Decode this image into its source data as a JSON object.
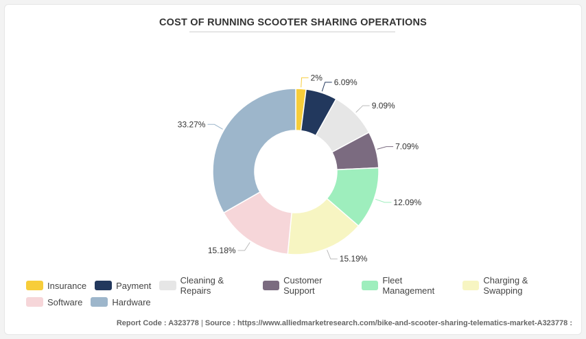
{
  "chart_data": {
    "type": "pie",
    "title": "COST OF RUNNING SCOOTER SHARING OPERATIONS",
    "donut": true,
    "series": [
      {
        "name": "Insurance",
        "value": 2,
        "label": "2%",
        "color": "#f7cd3a"
      },
      {
        "name": "Payment",
        "value": 6.09,
        "label": "6.09%",
        "color": "#22385d"
      },
      {
        "name": "Cleaning & Repairs",
        "value": 9.09,
        "label": "9.09%",
        "color": "#e6e6e6"
      },
      {
        "name": "Customer Support",
        "value": 7.09,
        "label": "7.09%",
        "color": "#7b6b80"
      },
      {
        "name": "Fleet Management",
        "value": 12.09,
        "label": "12.09%",
        "color": "#9eeebd"
      },
      {
        "name": "Charging & Swapping",
        "value": 15.19,
        "label": "15.19%",
        "color": "#f7f5c2"
      },
      {
        "name": "Software",
        "value": 15.18,
        "label": "15.18%",
        "color": "#f6d6d9"
      },
      {
        "name": "Hardware",
        "value": 33.27,
        "label": "33.27%",
        "color": "#9db6cb"
      }
    ],
    "legend_position": "bottom"
  },
  "footer": {
    "report_code_label": "Report Code : ",
    "report_code": "A323778",
    "separator": " | ",
    "source_label": "Source : ",
    "source_url": "https://www.alliedmarketresearch.com/bike-and-scooter-sharing-telematics-market-A323778 :"
  }
}
